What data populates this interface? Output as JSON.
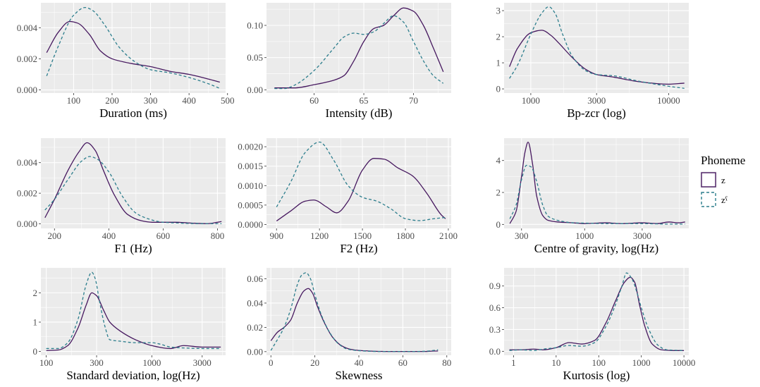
{
  "colors": {
    "z": "#46185f",
    "z_pharyngealized": "#2b7d8c",
    "panel_bg": "#ebebeb",
    "grid_major": "#ffffff"
  },
  "legend": {
    "title": "Phoneme",
    "items": [
      {
        "label": "z",
        "color": "#46185f",
        "linestyle": "solid"
      },
      {
        "label": "zˤ",
        "color": "#2b7d8c",
        "linestyle": "dashed"
      }
    ]
  },
  "chart_data": [
    {
      "type": "line",
      "scale": "linear",
      "xlabel": "Duration (ms)",
      "xlim": [
        15,
        495
      ],
      "ylim": [
        -0.0002,
        0.0056
      ],
      "xticks": [
        {
          "v": 100,
          "label": "100"
        },
        {
          "v": 200,
          "label": "200"
        },
        {
          "v": 300,
          "label": "300"
        },
        {
          "v": 400,
          "label": "400"
        },
        {
          "v": 500,
          "label": "500"
        }
      ],
      "yticks": [
        {
          "v": 0,
          "label": "0.000"
        },
        {
          "v": 0.002,
          "label": "0.002"
        },
        {
          "v": 0.004,
          "label": "0.004"
        }
      ],
      "series": [
        {
          "key": "z",
          "x": [
            30,
            60,
            90,
            110,
            140,
            170,
            200,
            250,
            300,
            350,
            400,
            450,
            480
          ],
          "y": [
            0.0024,
            0.0037,
            0.0044,
            0.0043,
            0.0036,
            0.0025,
            0.002,
            0.0017,
            0.0015,
            0.0012,
            0.001,
            0.0007,
            0.0005
          ]
        },
        {
          "key": "zf",
          "x": [
            30,
            60,
            100,
            130,
            150,
            180,
            220,
            260,
            300,
            350,
            400,
            450,
            480
          ],
          "y": [
            0.0009,
            0.0028,
            0.0048,
            0.0053,
            0.0051,
            0.0042,
            0.0027,
            0.0018,
            0.0013,
            0.0011,
            0.0008,
            0.0004,
            0.0001
          ]
        }
      ]
    },
    {
      "type": "line",
      "scale": "linear",
      "xlabel": "Intensity (dB)",
      "xlim": [
        55.2,
        73.8
      ],
      "ylim": [
        -0.005,
        0.135
      ],
      "xticks": [
        {
          "v": 60,
          "label": "60"
        },
        {
          "v": 65,
          "label": "65"
        },
        {
          "v": 70,
          "label": "70"
        }
      ],
      "yticks": [
        {
          "v": 0,
          "label": "0.00"
        },
        {
          "v": 0.05,
          "label": "0.05"
        },
        {
          "v": 0.1,
          "label": "0.10"
        }
      ],
      "series": [
        {
          "key": "z",
          "x": [
            56,
            58,
            60,
            62,
            63,
            64,
            65,
            66,
            67,
            68,
            69,
            70,
            71,
            72,
            73
          ],
          "y": [
            0.003,
            0.003,
            0.008,
            0.015,
            0.022,
            0.045,
            0.075,
            0.095,
            0.1,
            0.115,
            0.127,
            0.122,
            0.1,
            0.065,
            0.028
          ]
        },
        {
          "key": "zf",
          "x": [
            56,
            57,
            58,
            60,
            62,
            63,
            64,
            65,
            66,
            67,
            68,
            69,
            70,
            71,
            72,
            73
          ],
          "y": [
            0.002,
            0.002,
            0.007,
            0.03,
            0.065,
            0.082,
            0.088,
            0.086,
            0.09,
            0.103,
            0.115,
            0.105,
            0.075,
            0.045,
            0.022,
            0.01
          ]
        }
      ]
    },
    {
      "type": "line",
      "scale": "log",
      "xlabel": "Bp-zcr (log)",
      "xlim": [
        640,
        14000
      ],
      "ylim": [
        -0.16,
        3.3
      ],
      "xticks": [
        {
          "v": 1000,
          "label": "1000"
        },
        {
          "v": 3000,
          "label": "3000"
        },
        {
          "v": 10000,
          "label": "10000"
        }
      ],
      "yticks": [
        {
          "v": 0,
          "label": "0"
        },
        {
          "v": 1,
          "label": "1"
        },
        {
          "v": 2,
          "label": "2"
        },
        {
          "v": 3,
          "label": "3"
        }
      ],
      "series": [
        {
          "key": "z",
          "x": [
            700,
            800,
            1000,
            1200,
            1400,
            1600,
            2000,
            2500,
            3000,
            4000,
            6000,
            10000,
            13000
          ],
          "y": [
            0.85,
            1.55,
            2.15,
            2.25,
            2.05,
            1.75,
            1.2,
            0.75,
            0.55,
            0.45,
            0.28,
            0.18,
            0.22
          ]
        },
        {
          "key": "zf",
          "x": [
            700,
            800,
            1000,
            1200,
            1350,
            1500,
            1700,
            2000,
            2500,
            3000,
            4000,
            6000,
            10000,
            13000
          ],
          "y": [
            0.4,
            0.9,
            2.1,
            2.9,
            3.15,
            2.9,
            2.1,
            1.25,
            0.7,
            0.55,
            0.5,
            0.3,
            0.1,
            0.02
          ]
        }
      ]
    },
    {
      "type": "line",
      "scale": "linear",
      "xlabel": "F1 (Hz)",
      "xlim": [
        150,
        830
      ],
      "ylim": [
        -0.0003,
        0.0056
      ],
      "xticks": [
        {
          "v": 200,
          "label": "200"
        },
        {
          "v": 400,
          "label": "400"
        },
        {
          "v": 600,
          "label": "600"
        },
        {
          "v": 800,
          "label": "800"
        }
      ],
      "yticks": [
        {
          "v": 0,
          "label": "0.000"
        },
        {
          "v": 0.002,
          "label": "0.002"
        },
        {
          "v": 0.004,
          "label": "0.004"
        }
      ],
      "series": [
        {
          "key": "z",
          "x": [
            165,
            200,
            250,
            290,
            320,
            350,
            380,
            420,
            470,
            520,
            560,
            600,
            650,
            700,
            760,
            800,
            815
          ],
          "y": [
            0.0004,
            0.0016,
            0.0035,
            0.0047,
            0.0053,
            0.0048,
            0.0035,
            0.0019,
            0.0006,
            0.0002,
            0.0001,
            0.0001,
            0.0001,
            5e-05,
            1e-05,
            0.0001,
            0.00015
          ]
        },
        {
          "key": "zf",
          "x": [
            165,
            200,
            250,
            300,
            330,
            360,
            400,
            450,
            500,
            550,
            600,
            650,
            700,
            750,
            800,
            815
          ],
          "y": [
            0.0009,
            0.0016,
            0.0029,
            0.0041,
            0.0044,
            0.0042,
            0.0034,
            0.0018,
            0.0007,
            0.0003,
            0.0001,
            5e-05,
            2e-05,
            1e-05,
            1e-05,
            1e-05
          ]
        }
      ]
    },
    {
      "type": "line",
      "scale": "linear",
      "xlabel": "F2 (Hz)",
      "xlim": [
        830,
        2120
      ],
      "ylim": [
        -0.0001,
        0.00222
      ],
      "xticks": [
        {
          "v": 900,
          "label": "900"
        },
        {
          "v": 1200,
          "label": "1200"
        },
        {
          "v": 1500,
          "label": "1500"
        },
        {
          "v": 1800,
          "label": "1800"
        },
        {
          "v": 2100,
          "label": "2100"
        }
      ],
      "yticks": [
        {
          "v": 0,
          "label": "0.0000"
        },
        {
          "v": 0.0005,
          "label": "0.0005"
        },
        {
          "v": 0.001,
          "label": "0.0010"
        },
        {
          "v": 0.0015,
          "label": "0.0015"
        },
        {
          "v": 0.002,
          "label": "0.0020"
        }
      ],
      "series": [
        {
          "key": "z",
          "x": [
            900,
            1000,
            1100,
            1160,
            1250,
            1320,
            1400,
            1500,
            1580,
            1650,
            1750,
            1850,
            1950,
            2050,
            2080
          ],
          "y": [
            9e-05,
            0.00035,
            0.0006,
            0.00063,
            0.00045,
            0.0003,
            0.0006,
            0.0014,
            0.0017,
            0.00168,
            0.00145,
            0.00125,
            0.0008,
            0.00025,
            0.00015
          ]
        },
        {
          "key": "zf",
          "x": [
            900,
            1000,
            1100,
            1200,
            1300,
            1400,
            1500,
            1600,
            1700,
            1800,
            1900,
            2000,
            2080
          ],
          "y": [
            0.00045,
            0.0011,
            0.00185,
            0.00212,
            0.00165,
            0.001,
            0.0007,
            0.0006,
            0.0004,
            0.00015,
            0.0001,
            0.00015,
            0.00018
          ]
        }
      ]
    },
    {
      "type": "line",
      "scale": "log",
      "xlabel": "Centre of gravity, log(Hz)",
      "xlim": [
        215,
        7300
      ],
      "ylim": [
        -0.25,
        5.4
      ],
      "xticks": [
        {
          "v": 300,
          "label": "300"
        },
        {
          "v": 1000,
          "label": "1000"
        },
        {
          "v": 3000,
          "label": "3000"
        }
      ],
      "yticks": [
        {
          "v": 0,
          "label": "0"
        },
        {
          "v": 2,
          "label": "2"
        },
        {
          "v": 4,
          "label": "4"
        }
      ],
      "series": [
        {
          "key": "z",
          "x": [
            240,
            270,
            300,
            320,
            340,
            370,
            400,
            450,
            500,
            600,
            800,
            1000,
            1500,
            2000,
            3000,
            4000,
            5000,
            6000,
            6800
          ],
          "y": [
            0.05,
            0.8,
            3.0,
            4.5,
            5.15,
            3.8,
            1.8,
            0.55,
            0.25,
            0.15,
            0.1,
            0.05,
            0.1,
            0.05,
            0.1,
            0.05,
            0.15,
            0.1,
            0.15
          ]
        },
        {
          "key": "zf",
          "x": [
            240,
            270,
            300,
            330,
            360,
            400,
            450,
            500,
            600,
            800,
            1000,
            1500,
            2000,
            3000,
            4000,
            5000,
            6000,
            6800
          ],
          "y": [
            0.35,
            1.2,
            2.8,
            3.7,
            3.6,
            2.7,
            1.2,
            0.5,
            0.25,
            0.1,
            0.08,
            0.05,
            0.05,
            0.05,
            0.03,
            0.02,
            0.02,
            0.02
          ]
        }
      ]
    },
    {
      "type": "line",
      "scale": "log",
      "xlabel": "Standard deviation, log(Hz)",
      "xlim": [
        89,
        5000
      ],
      "ylim": [
        -0.13,
        2.85
      ],
      "xticks": [
        {
          "v": 100,
          "label": "100"
        },
        {
          "v": 300,
          "label": "300"
        },
        {
          "v": 1000,
          "label": "1000"
        },
        {
          "v": 3000,
          "label": "3000"
        }
      ],
      "yticks": [
        {
          "v": 0,
          "label": "0"
        },
        {
          "v": 1,
          "label": "1"
        },
        {
          "v": 2,
          "label": "2"
        }
      ],
      "series": [
        {
          "key": "z",
          "x": [
            100,
            130,
            160,
            200,
            240,
            270,
            300,
            350,
            400,
            500,
            700,
            1000,
            1500,
            2000,
            3000,
            4500
          ],
          "y": [
            0.03,
            0.05,
            0.2,
            0.8,
            1.6,
            2.0,
            1.9,
            1.4,
            1.0,
            0.7,
            0.4,
            0.2,
            0.1,
            0.2,
            0.15,
            0.15
          ]
        },
        {
          "key": "zf",
          "x": [
            100,
            130,
            160,
            200,
            240,
            270,
            290,
            320,
            360,
            400,
            500,
            700,
            1000,
            1200,
            1500,
            2000,
            3000,
            4500
          ],
          "y": [
            0.1,
            0.1,
            0.3,
            1.1,
            2.3,
            2.7,
            2.5,
            1.7,
            0.85,
            0.4,
            0.35,
            0.3,
            0.3,
            0.25,
            0.15,
            0.12,
            0.1,
            0.1
          ]
        }
      ]
    },
    {
      "type": "line",
      "scale": "linear",
      "xlabel": "Skewness",
      "xlim": [
        -2,
        82
      ],
      "ylim": [
        -0.003,
        0.069
      ],
      "xticks": [
        {
          "v": 0,
          "label": "0"
        },
        {
          "v": 20,
          "label": "20"
        },
        {
          "v": 40,
          "label": "40"
        },
        {
          "v": 60,
          "label": "60"
        },
        {
          "v": 80,
          "label": "80"
        }
      ],
      "yticks": [
        {
          "v": 0,
          "label": "0.00"
        },
        {
          "v": 0.02,
          "label": "0.02"
        },
        {
          "v": 0.04,
          "label": "0.04"
        },
        {
          "v": 0.06,
          "label": "0.06"
        }
      ],
      "series": [
        {
          "key": "z",
          "x": [
            0,
            3,
            6,
            9,
            12,
            15,
            17,
            19,
            21,
            24,
            28,
            32,
            36,
            40,
            45,
            50,
            55,
            60,
            65,
            70,
            74,
            76
          ],
          "y": [
            0.009,
            0.016,
            0.02,
            0.026,
            0.04,
            0.05,
            0.052,
            0.048,
            0.038,
            0.025,
            0.012,
            0.005,
            0.002,
            0.001,
            0.0005,
            0.0002,
            0.0001,
            0.0001,
            0.0001,
            0.0001,
            0.0005,
            0.0005
          ]
        },
        {
          "key": "zf",
          "x": [
            0,
            3,
            6,
            9,
            12,
            14,
            16,
            18,
            20,
            23,
            27,
            31,
            35,
            40,
            45,
            50,
            55,
            60,
            65,
            70,
            74,
            76
          ],
          "y": [
            0.001,
            0.01,
            0.02,
            0.035,
            0.055,
            0.063,
            0.065,
            0.06,
            0.047,
            0.03,
            0.015,
            0.006,
            0.002,
            0.0008,
            0.0003,
            0.0001,
            0.0001,
            0.0001,
            0.0001,
            0.0003,
            0.001,
            0.0015
          ]
        }
      ]
    },
    {
      "type": "line",
      "scale": "log",
      "xlabel": "Kurtosis (log)",
      "xlim": [
        0.6,
        13000
      ],
      "ylim": [
        -0.055,
        1.15
      ],
      "xticks": [
        {
          "v": 1,
          "label": "1"
        },
        {
          "v": 10,
          "label": "10"
        },
        {
          "v": 100,
          "label": "100"
        },
        {
          "v": 1000,
          "label": "1000"
        },
        {
          "v": 10000,
          "label": "10000"
        }
      ],
      "yticks": [
        {
          "v": 0,
          "label": "0.0"
        },
        {
          "v": 0.3,
          "label": "0.3"
        },
        {
          "v": 0.6,
          "label": "0.6"
        },
        {
          "v": 0.9,
          "label": "0.9"
        }
      ],
      "series": [
        {
          "key": "z",
          "x": [
            0.8,
            1.5,
            3,
            5,
            10,
            20,
            40,
            80,
            150,
            250,
            400,
            550,
            700,
            900,
            1200,
            1800,
            3000,
            6000,
            10000
          ],
          "y": [
            0.02,
            0.02,
            0.03,
            0.02,
            0.05,
            0.12,
            0.1,
            0.15,
            0.4,
            0.7,
            0.95,
            1.02,
            0.95,
            0.65,
            0.35,
            0.1,
            0.02,
            0.01,
            0.01
          ]
        },
        {
          "key": "zf",
          "x": [
            0.8,
            1.5,
            3,
            5,
            10,
            20,
            40,
            80,
            150,
            250,
            350,
            450,
            600,
            800,
            1000,
            1500,
            2500,
            4000,
            10000
          ],
          "y": [
            0.01,
            0.02,
            0.01,
            0.03,
            0.05,
            0.08,
            0.07,
            0.12,
            0.35,
            0.65,
            0.9,
            1.08,
            1.0,
            0.8,
            0.6,
            0.3,
            0.08,
            0.02,
            0.01
          ]
        }
      ]
    }
  ]
}
